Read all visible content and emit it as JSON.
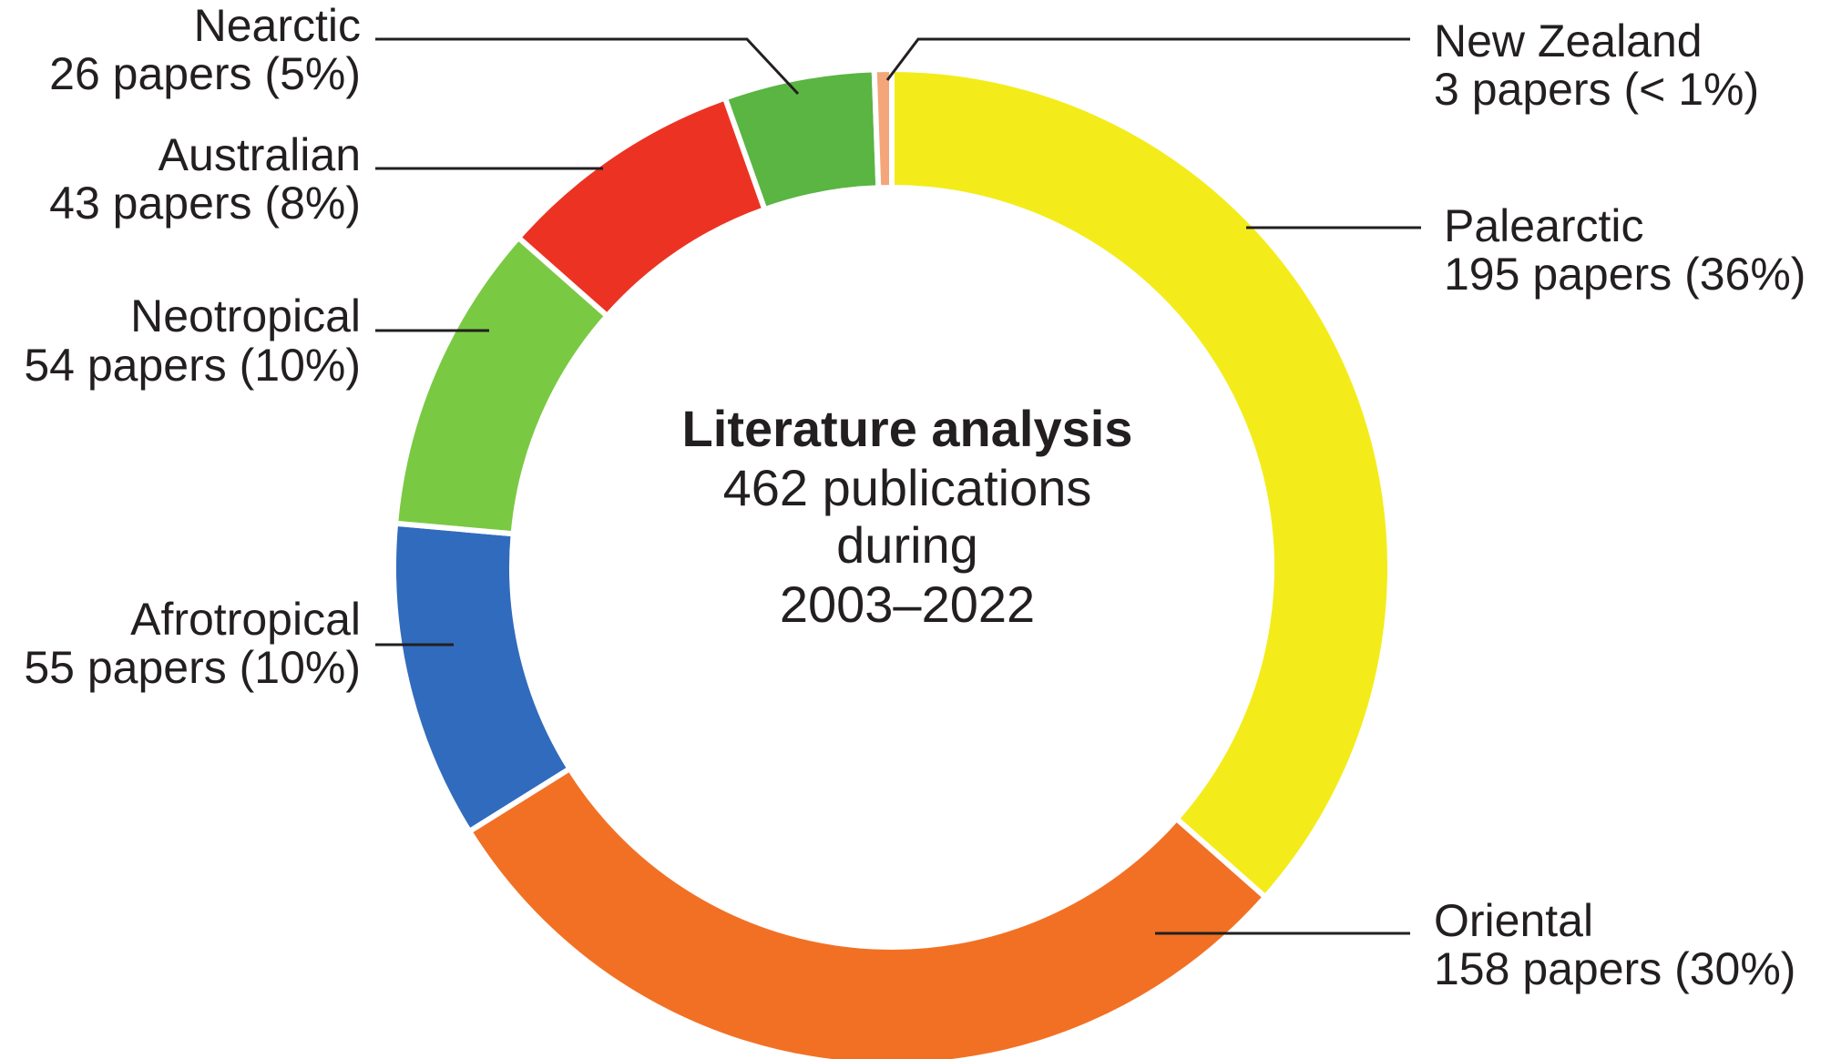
{
  "chart_data": {
    "type": "pie",
    "variant": "donut",
    "title": "",
    "center_text": {
      "title": "Literature analysis",
      "lines": [
        "462 publications",
        "during",
        "2003–2022"
      ]
    },
    "total": 462,
    "unit": "papers",
    "slices": [
      {
        "name": "Palearctic",
        "value": 195,
        "percent_label": "36%",
        "label_line1": "Palearctic",
        "label_line2": "195 papers (36%)",
        "color": "#f3ec1a"
      },
      {
        "name": "Oriental",
        "value": 158,
        "percent_label": "30%",
        "label_line1": "Oriental",
        "label_line2": "158 papers (30%)",
        "color": "#f27024"
      },
      {
        "name": "Afrotropical",
        "value": 55,
        "percent_label": "10%",
        "label_line1": "Afrotropical",
        "label_line2": "55 papers (10%)",
        "color": "#316bbd"
      },
      {
        "name": "Neotropical",
        "value": 54,
        "percent_label": "10%",
        "label_line1": "Neotropical",
        "label_line2": "54 papers (10%)",
        "color": "#7ac943"
      },
      {
        "name": "Australian",
        "value": 43,
        "percent_label": "8%",
        "label_line1": "Australian",
        "label_line2": "43 papers (8%)",
        "color": "#ec3323"
      },
      {
        "name": "Nearctic",
        "value": 26,
        "percent_label": "5%",
        "label_line1": "Nearctic",
        "label_line2": "26 papers (5%)",
        "color": "#5ab543"
      },
      {
        "name": "New Zealand",
        "value": 3,
        "percent_label": "< 1%",
        "label_line1": "New Zealand",
        "label_line2": "3 papers (< 1%)",
        "color": "#f4a67a"
      }
    ],
    "legend": "none"
  }
}
